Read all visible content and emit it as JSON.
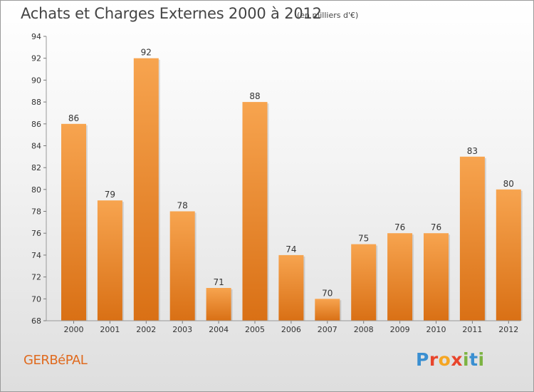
{
  "chart_data": {
    "type": "bar",
    "title": "Achats et Charges Externes 2000 à 2012",
    "subtitle": "(en milliers d'€)",
    "categories": [
      "2000",
      "2001",
      "2002",
      "2003",
      "2004",
      "2005",
      "2006",
      "2007",
      "2008",
      "2009",
      "2010",
      "2011",
      "2012"
    ],
    "values": [
      86,
      79,
      92,
      78,
      71,
      88,
      74,
      70,
      75,
      76,
      76,
      83,
      80
    ],
    "value_labels": [
      "86",
      "79",
      "92",
      "78",
      "71",
      "88",
      "74",
      "70",
      "75",
      "76",
      "76",
      "83",
      "80"
    ],
    "ylim": [
      68,
      94
    ],
    "yticks": [
      68,
      70,
      72,
      74,
      76,
      78,
      80,
      82,
      84,
      86,
      88,
      90,
      92,
      94
    ],
    "ytick_labels": [
      "68",
      "70",
      "72",
      "74",
      "76",
      "78",
      "80",
      "82",
      "84",
      "86",
      "88",
      "90",
      "92",
      "94"
    ],
    "grid": false,
    "bar_color_top": "#f7a44f",
    "bar_color_bottom": "#d97015"
  },
  "footer": {
    "commune": "GERBéPAL",
    "commune_color": "#e06a1e",
    "logo_letters": [
      {
        "char": "P",
        "color": "#3a8fd1"
      },
      {
        "char": "r",
        "color": "#e8452c"
      },
      {
        "char": "o",
        "color": "#f5a623"
      },
      {
        "char": "x",
        "color": "#e8452c"
      },
      {
        "char": "i",
        "color": "#7cb342"
      },
      {
        "char": "t",
        "color": "#3a8fd1"
      },
      {
        "char": "i",
        "color": "#7cb342"
      }
    ]
  }
}
